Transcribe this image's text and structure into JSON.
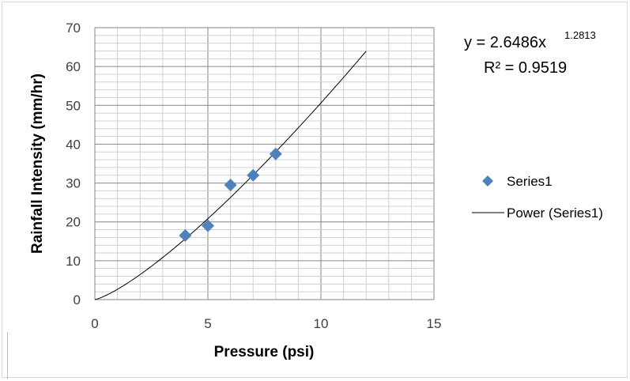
{
  "chart_data": {
    "type": "scatter",
    "xlabel": "Pressure (psi)",
    "ylabel": "Rainfall Intensity (mm/hr)",
    "xlim": [
      0,
      15
    ],
    "ylim": [
      0,
      70
    ],
    "xticks": [
      "0",
      "5",
      "10",
      "15"
    ],
    "yticks": [
      "0",
      "10",
      "20",
      "30",
      "40",
      "50",
      "60",
      "70"
    ],
    "grid": true,
    "legend_position": "right",
    "series": [
      {
        "name": "Series1",
        "marker": "diamond",
        "color": "#4f81bd",
        "points": [
          {
            "x": 4,
            "y": 16.5
          },
          {
            "x": 5,
            "y": 19
          },
          {
            "x": 6,
            "y": 29.5
          },
          {
            "x": 7,
            "y": 32
          },
          {
            "x": 8,
            "y": 37.5
          }
        ]
      }
    ],
    "trendline": {
      "name": "Power (Series1)",
      "type": "power",
      "coefficient": 2.6486,
      "exponent": 1.2813,
      "x_range": [
        0,
        12
      ],
      "color": "#000000"
    },
    "annotations": {
      "equation_base": "y = 2.6486x",
      "equation_exponent": "1.2813",
      "r_squared": "R² = 0.9519"
    }
  }
}
